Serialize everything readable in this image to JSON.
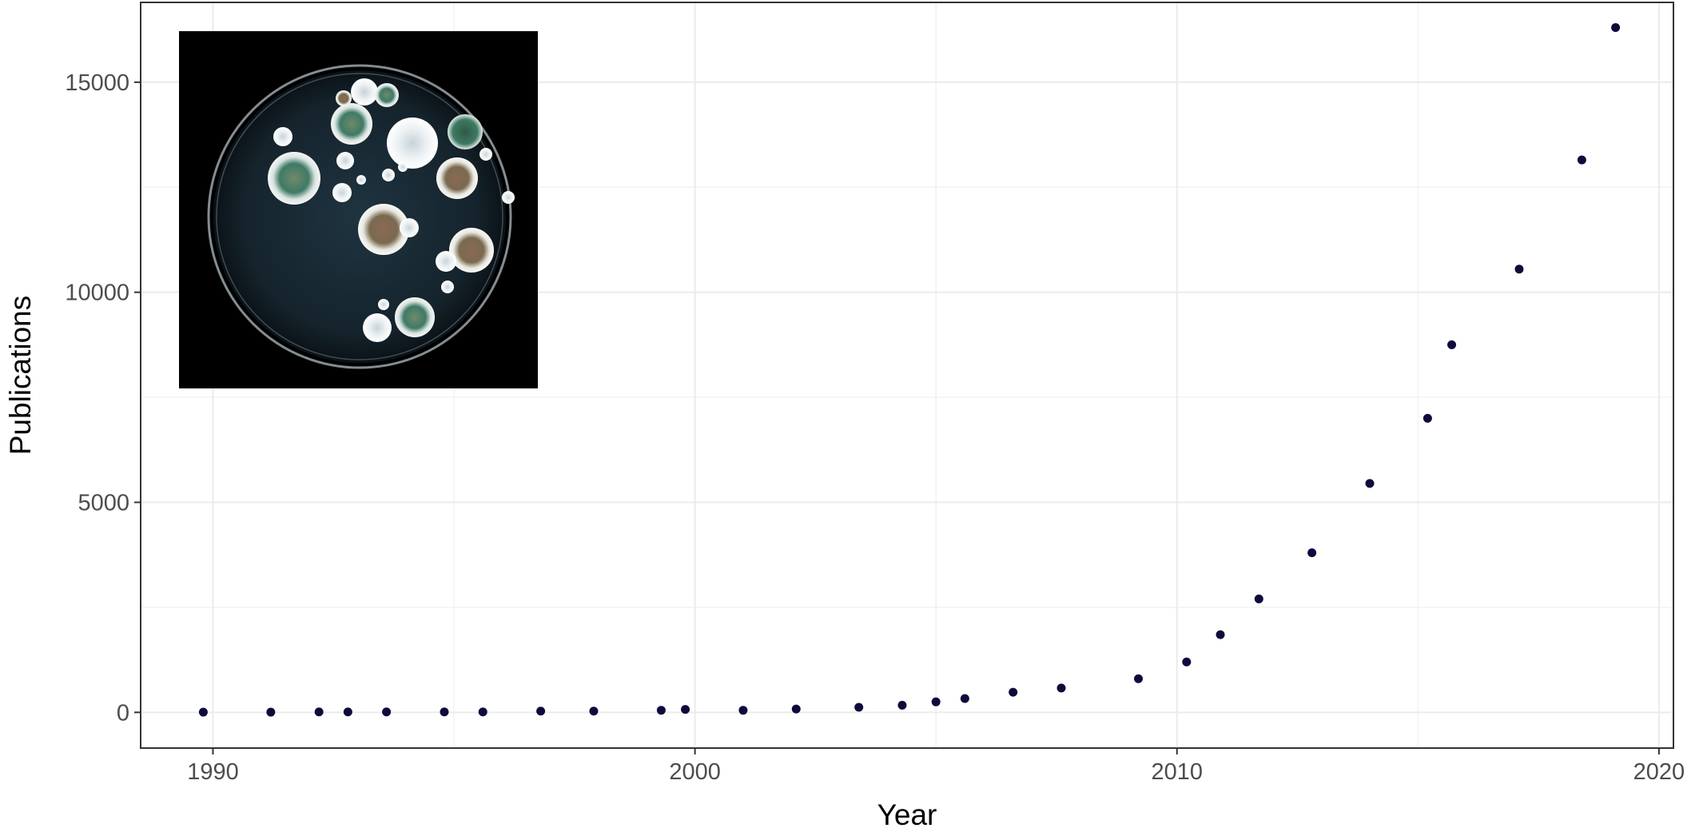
{
  "chart_data": {
    "type": "scatter",
    "xlabel": "Year",
    "ylabel": "Publications",
    "xlim": [
      1988.5,
      2020.3
    ],
    "ylim": [
      -850,
      16900
    ],
    "xticks": [
      1990,
      2000,
      2010,
      2020
    ],
    "yticks": [
      0,
      5000,
      10000,
      15000
    ],
    "grid": true,
    "point_color": "#0d0b3b",
    "series": [
      {
        "x": [
          1989.8,
          1991.2,
          1992.2,
          1992.8,
          1993.6,
          1994.8,
          1995.6,
          1996.8,
          1997.9,
          1999.3,
          1999.8,
          2001.0,
          2002.1,
          2003.4,
          2004.3,
          2005.0,
          2005.6,
          2006.6,
          2007.6,
          2009.2,
          2010.2,
          2010.9,
          2011.7,
          2012.8,
          2014.0,
          2015.2,
          2015.7,
          2017.1,
          2018.4,
          2019.1
        ],
        "y": [
          5,
          5,
          10,
          10,
          10,
          10,
          10,
          30,
          30,
          50,
          70,
          50,
          80,
          120,
          170,
          250,
          330,
          480,
          580,
          800,
          1200,
          1850,
          2700,
          3800,
          5450,
          7000,
          8750,
          10550,
          13150,
          16300
        ]
      }
    ]
  },
  "inset": {
    "icon": "petri-dish-with-mold-colonies"
  }
}
